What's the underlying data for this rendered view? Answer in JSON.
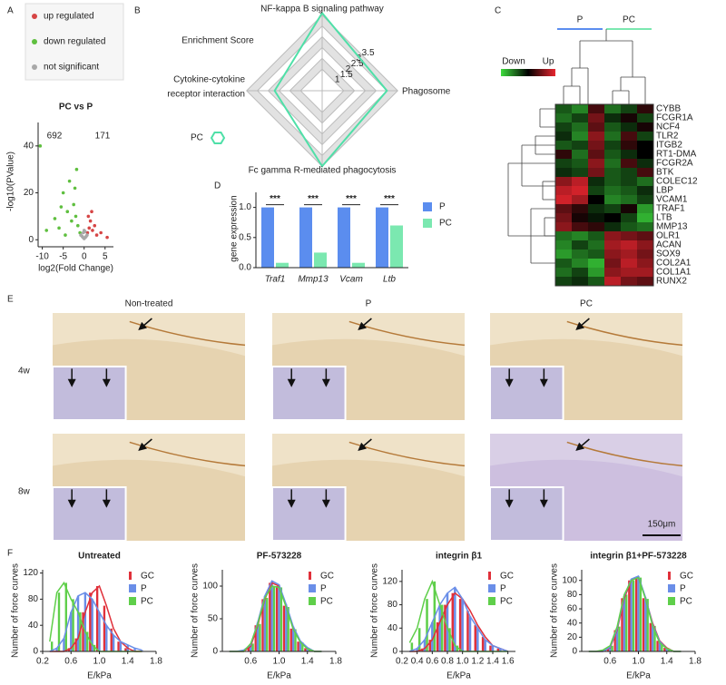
{
  "panel_labels": [
    "A",
    "B",
    "C",
    "D",
    "E",
    "F"
  ],
  "chart_data": [
    {
      "type": "scatter",
      "title": "PC vs P",
      "xlabel": "log2(Fold Change)",
      "ylabel": "-log10(PValue)",
      "annotations": [
        {
          "text": "692",
          "color": "#5fbf3f"
        },
        {
          "text": "171",
          "color": "#d64545"
        }
      ],
      "xlim": [
        -11,
        7
      ],
      "ylim": [
        -3,
        50
      ],
      "xticks": [
        -10,
        -5,
        0,
        5
      ],
      "yticks": [
        0,
        20,
        40
      ],
      "series": [
        {
          "name": "up regulated",
          "color": "#d64545",
          "x": [
            0.8,
            1.2,
            1.5,
            2,
            2.5,
            3,
            1,
            1.8,
            4,
            5.5
          ],
          "values": [
            3,
            5,
            8,
            4,
            6,
            2,
            10,
            12,
            3,
            1
          ]
        },
        {
          "name": "down regulated",
          "color": "#5fbf3f",
          "x": [
            -1,
            -1.5,
            -2,
            -2.5,
            -3,
            -4,
            -5,
            -6,
            -7,
            -9,
            -3.5,
            -2.2,
            -1.8,
            -4.5,
            -5.5,
            -10.5
          ],
          "values": [
            3,
            6,
            10,
            15,
            8,
            12,
            20,
            5,
            9,
            4,
            25,
            22,
            30,
            2,
            14,
            40
          ]
        },
        {
          "name": "not significant",
          "color": "#a8a8a8",
          "x": [
            -0.8,
            -0.5,
            -0.3,
            0,
            0.3,
            0.5,
            0.7,
            -0.2,
            0.2,
            0
          ],
          "values": [
            2,
            1.5,
            1,
            0.5,
            1,
            1.5,
            2,
            3,
            3.5,
            4
          ]
        }
      ]
    },
    {
      "type": "radar",
      "title": "Enrichment Score",
      "axes": [
        "NF-kappa B signaling pathway",
        "Phagosome",
        "Fc gamma R-mediated phagocytosis",
        [
          "Cytokine-cytokine",
          "receptor interaction"
        ]
      ],
      "rlim": [
        0,
        3.7
      ],
      "rticks": [
        1,
        1.5,
        2,
        2.5,
        3,
        3.5
      ],
      "series": [
        {
          "name": "PC",
          "color": "#4fe0a8",
          "values": [
            3.6,
            3.0,
            3.5,
            2.2
          ]
        }
      ]
    },
    {
      "type": "bar",
      "ylabel": "gene expression",
      "categories": [
        "Traf1",
        "Mmp13",
        "Vcam",
        "Ltb"
      ],
      "ylim": [
        0,
        1.25
      ],
      "yticks": [
        {
          "value": 0,
          "label": "0.0"
        },
        {
          "value": 0.5,
          "label": "0.5"
        },
        {
          "value": 1,
          "label": "1.0"
        }
      ],
      "annotations": [
        "***",
        "***",
        "***",
        "***"
      ],
      "series": [
        {
          "name": "P",
          "color": "#5b8def",
          "values": [
            1,
            1,
            1,
            1
          ]
        },
        {
          "name": "PC",
          "color": "#7be8b0",
          "values": [
            0.08,
            0.25,
            0.08,
            0.7
          ]
        }
      ]
    },
    {
      "type": "histogram",
      "title": "Untreated",
      "xlabel": "E/kPa",
      "ylabel": "Number of force curves",
      "x": [
        0.3,
        0.4,
        0.5,
        0.6,
        0.7,
        0.8,
        0.9,
        1.0,
        1.1,
        1.2,
        1.3,
        1.4,
        1.5,
        1.6
      ],
      "xlim": [
        0.2,
        1.8
      ],
      "xticks": [
        0.2,
        0.6,
        {
          "value": 1,
          "label": "1.0"
        },
        1.4,
        1.8
      ],
      "ylim": [
        0,
        125
      ],
      "yticks": [
        0,
        40,
        80,
        120
      ],
      "series": [
        {
          "name": "GC",
          "color": "#e0303a",
          "values": [
            0,
            0,
            0,
            5,
            20,
            60,
            90,
            100,
            70,
            35,
            15,
            5,
            0,
            0
          ]
        },
        {
          "name": "P",
          "color": "#6a8ee8",
          "values": [
            0,
            5,
            20,
            60,
            85,
            90,
            80,
            60,
            40,
            25,
            15,
            10,
            5,
            2
          ]
        },
        {
          "name": "PC",
          "color": "#5fcf4a",
          "values": [
            15,
            90,
            105,
            80,
            60,
            30,
            10,
            0,
            0,
            0,
            0,
            0,
            0,
            0
          ]
        }
      ]
    },
    {
      "type": "histogram",
      "title": "PF-573228",
      "xlabel": "E/kPa",
      "ylabel": "Number of force curves",
      "x": [
        0.3,
        0.4,
        0.5,
        0.6,
        0.7,
        0.8,
        0.9,
        1.0,
        1.1,
        1.2,
        1.3,
        1.4,
        1.5,
        1.6
      ],
      "xlim": [
        0.2,
        1.8
      ],
      "xticks": [
        0.6,
        {
          "value": 1,
          "label": "1.0"
        },
        1.4,
        1.8
      ],
      "ylim": [
        0,
        125
      ],
      "yticks": [
        0,
        50,
        100
      ],
      "series": [
        {
          "name": "GC",
          "color": "#e0303a",
          "values": [
            0,
            0,
            0,
            8,
            40,
            80,
            105,
            100,
            70,
            35,
            15,
            5,
            0,
            0
          ]
        },
        {
          "name": "P",
          "color": "#6a8ee8",
          "values": [
            0,
            0,
            2,
            10,
            45,
            85,
            108,
            102,
            72,
            38,
            16,
            6,
            0,
            0
          ]
        },
        {
          "name": "PC",
          "color": "#5fcf4a",
          "values": [
            0,
            0,
            0,
            12,
            42,
            82,
            100,
            98,
            68,
            34,
            14,
            4,
            0,
            0
          ]
        }
      ]
    },
    {
      "type": "histogram",
      "title": "integrin β1",
      "xlabel": "E/kPa",
      "ylabel": "Number of force curves",
      "x": [
        0.3,
        0.4,
        0.5,
        0.6,
        0.7,
        0.8,
        0.9,
        1.0,
        1.1,
        1.2,
        1.3,
        1.4,
        1.5,
        1.6
      ],
      "xlim": [
        0.2,
        1.7
      ],
      "xticks": [
        0.2,
        0.4,
        0.6,
        0.8,
        {
          "value": 1,
          "label": "1.0"
        },
        1.2,
        1.4,
        1.6
      ],
      "ylim": [
        0,
        140
      ],
      "yticks": [
        0,
        40,
        80,
        120
      ],
      "series": [
        {
          "name": "GC",
          "color": "#e0303a",
          "values": [
            0,
            0,
            5,
            20,
            50,
            80,
            100,
            90,
            70,
            45,
            25,
            10,
            5,
            0
          ]
        },
        {
          "name": "P",
          "color": "#6a8ee8",
          "values": [
            0,
            5,
            20,
            50,
            80,
            100,
            110,
            90,
            60,
            40,
            20,
            10,
            5,
            0
          ]
        },
        {
          "name": "PC",
          "color": "#5fcf4a",
          "values": [
            15,
            40,
            90,
            120,
            80,
            40,
            10,
            0,
            0,
            0,
            0,
            0,
            0,
            0
          ]
        }
      ]
    },
    {
      "type": "histogram",
      "title": "integrin β1+PF-573228",
      "xlabel": "E/kPa",
      "ylabel": "Number of force curves",
      "x": [
        0.3,
        0.4,
        0.5,
        0.6,
        0.7,
        0.8,
        0.9,
        1.0,
        1.1,
        1.2,
        1.3,
        1.4,
        1.5,
        1.6
      ],
      "xlim": [
        0.2,
        1.8
      ],
      "xticks": [
        0.6,
        {
          "value": 1,
          "label": "1.0"
        },
        1.4,
        1.8
      ],
      "ylim": [
        0,
        115
      ],
      "yticks": [
        0,
        20,
        40,
        60,
        80,
        100
      ],
      "series": [
        {
          "name": "GC",
          "color": "#e0303a",
          "values": [
            0,
            0,
            0,
            5,
            30,
            75,
            100,
            105,
            75,
            40,
            15,
            5,
            0,
            0
          ]
        },
        {
          "name": "P",
          "color": "#6a8ee8",
          "values": [
            0,
            0,
            0,
            6,
            32,
            78,
            102,
            106,
            76,
            38,
            14,
            4,
            0,
            0
          ]
        },
        {
          "name": "PC",
          "color": "#5fcf4a",
          "values": [
            0,
            0,
            2,
            8,
            35,
            80,
            100,
            104,
            74,
            36,
            12,
            4,
            0,
            0
          ]
        }
      ]
    }
  ],
  "heatmap": {
    "groups": [
      "P",
      "PC"
    ],
    "legend_low": "Down",
    "legend_high": "Up",
    "genes": [
      "CYBB",
      "FCGR1A",
      "NCF4",
      "TLR2",
      "ITGB2",
      "RT1-DMA",
      "FCGR2A",
      "BTK",
      "COLEC12",
      "LBP",
      "VCAM1",
      "TRAF1",
      "LTB",
      "MMP13",
      "OLR1",
      "ACAN",
      "SOX9",
      "COL2A1",
      "COL1A1",
      "RUNX2"
    ],
    "values": [
      [
        -0.4,
        -0.6,
        0.3,
        -0.5,
        -0.3,
        0.2
      ],
      [
        -0.5,
        -0.3,
        0.5,
        -0.2,
        0.1,
        -0.3
      ],
      [
        -0.3,
        -0.5,
        0.4,
        -0.4,
        -0.2,
        0.1
      ],
      [
        -0.2,
        -0.6,
        0.6,
        -0.5,
        0.3,
        -0.3
      ],
      [
        -0.4,
        -0.3,
        0.5,
        -0.3,
        0.2,
        0
      ],
      [
        0.2,
        -0.5,
        0.4,
        -0.4,
        -0.2,
        0
      ],
      [
        -0.3,
        -0.4,
        0.6,
        -0.5,
        0.3,
        -0.2
      ],
      [
        -0.2,
        -0.3,
        0.5,
        -0.4,
        -0.3,
        0.3
      ],
      [
        0.6,
        0.8,
        -0.2,
        -0.4,
        -0.3,
        -0.5
      ],
      [
        0.8,
        0.9,
        -0.3,
        -0.5,
        -0.4,
        -0.2
      ],
      [
        0.9,
        0.7,
        0,
        -0.6,
        -0.5,
        -0.3
      ],
      [
        0.4,
        0.2,
        -0.2,
        -0.3,
        0.1,
        -0.7
      ],
      [
        0.5,
        0.1,
        -0.1,
        0,
        -0.3,
        -0.8
      ],
      [
        0.6,
        0.3,
        0.2,
        -0.2,
        -0.4,
        -0.5
      ],
      [
        -0.5,
        -0.6,
        -0.4,
        0.6,
        0.5,
        0.4
      ],
      [
        -0.6,
        -0.3,
        -0.5,
        0.7,
        0.8,
        0.6
      ],
      [
        -0.7,
        -0.5,
        -0.4,
        0.6,
        0.7,
        0.5
      ],
      [
        -0.4,
        -0.6,
        -0.8,
        0.5,
        0.8,
        0.6
      ],
      [
        -0.5,
        -0.3,
        -0.7,
        0.6,
        0.7,
        0.7
      ],
      [
        -0.3,
        -0.2,
        -0.4,
        0.8,
        0.5,
        0.4
      ]
    ]
  },
  "histology": {
    "columns": [
      "Non-treated",
      "P",
      "PC"
    ],
    "rows": [
      "4w",
      "8w"
    ],
    "scale_bar": "150μm"
  }
}
